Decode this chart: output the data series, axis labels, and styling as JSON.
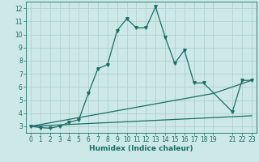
{
  "xlabel": "Humidex (Indice chaleur)",
  "bg_color": "#cce8e8",
  "grid_color": "#aacece",
  "line_color": "#1a6e64",
  "xlim": [
    -0.5,
    23.5
  ],
  "ylim": [
    2.5,
    12.5
  ],
  "xticks": [
    0,
    1,
    2,
    3,
    4,
    5,
    6,
    7,
    8,
    9,
    10,
    11,
    12,
    13,
    14,
    15,
    16,
    17,
    18,
    19,
    21,
    22,
    23
  ],
  "yticks": [
    3,
    4,
    5,
    6,
    7,
    8,
    9,
    10,
    11,
    12
  ],
  "curve1_x": [
    0,
    1,
    2,
    3,
    4,
    5,
    6,
    7,
    8,
    9,
    10,
    11,
    12,
    13,
    14,
    15,
    16,
    17,
    18,
    21,
    22,
    23
  ],
  "curve1_y": [
    3.0,
    2.9,
    2.85,
    3.0,
    3.3,
    3.5,
    5.5,
    7.4,
    7.7,
    10.3,
    11.2,
    10.5,
    10.5,
    12.1,
    9.8,
    7.8,
    8.8,
    6.3,
    6.3,
    4.1,
    6.5,
    6.5
  ],
  "curve2_x": [
    0,
    19,
    23
  ],
  "curve2_y": [
    3.0,
    5.5,
    6.5
  ],
  "curve3_x": [
    0,
    23
  ],
  "curve3_y": [
    3.0,
    3.8
  ],
  "marker_size": 2.5,
  "linewidth": 0.9,
  "tick_fontsize": 5.5,
  "xlabel_fontsize": 6.5
}
